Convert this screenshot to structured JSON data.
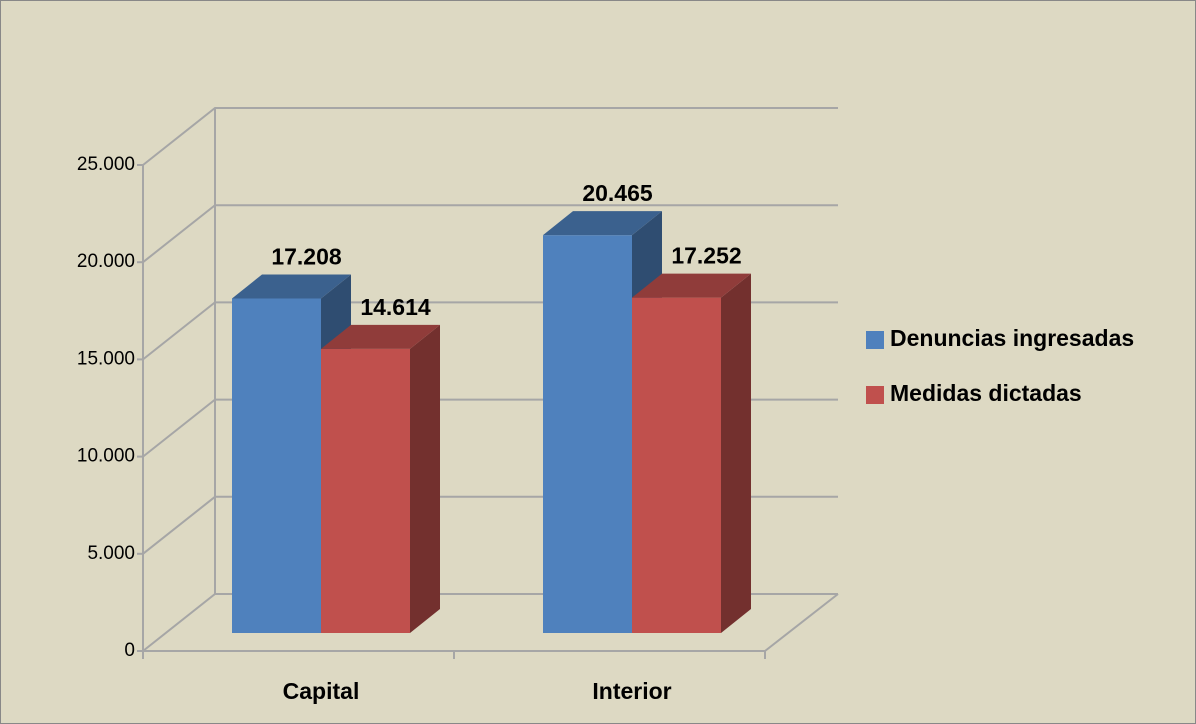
{
  "chart_data": {
    "type": "bar3d",
    "categories": [
      "Capital",
      "Interior"
    ],
    "series": [
      {
        "name": "Denuncias ingresadas",
        "color": "#4f81bd",
        "values": [
          17208,
          20465
        ],
        "value_labels": [
          "17.208",
          "20.465"
        ]
      },
      {
        "name": "Medidas dictadas",
        "color": "#c0504d",
        "values": [
          14614,
          17252
        ],
        "value_labels": [
          "14.614",
          "17.252"
        ]
      }
    ],
    "ylim": [
      0,
      25000
    ],
    "yticks": [
      0,
      {
        "value": 5000,
        "label": "5.000"
      },
      {
        "value": 10000,
        "label": "10.000"
      },
      {
        "value": 15000,
        "label": "15.000"
      },
      {
        "value": 20000,
        "label": "20.000"
      },
      {
        "value": 25000,
        "label": "25.000"
      }
    ],
    "grid": true,
    "legend": "right"
  }
}
